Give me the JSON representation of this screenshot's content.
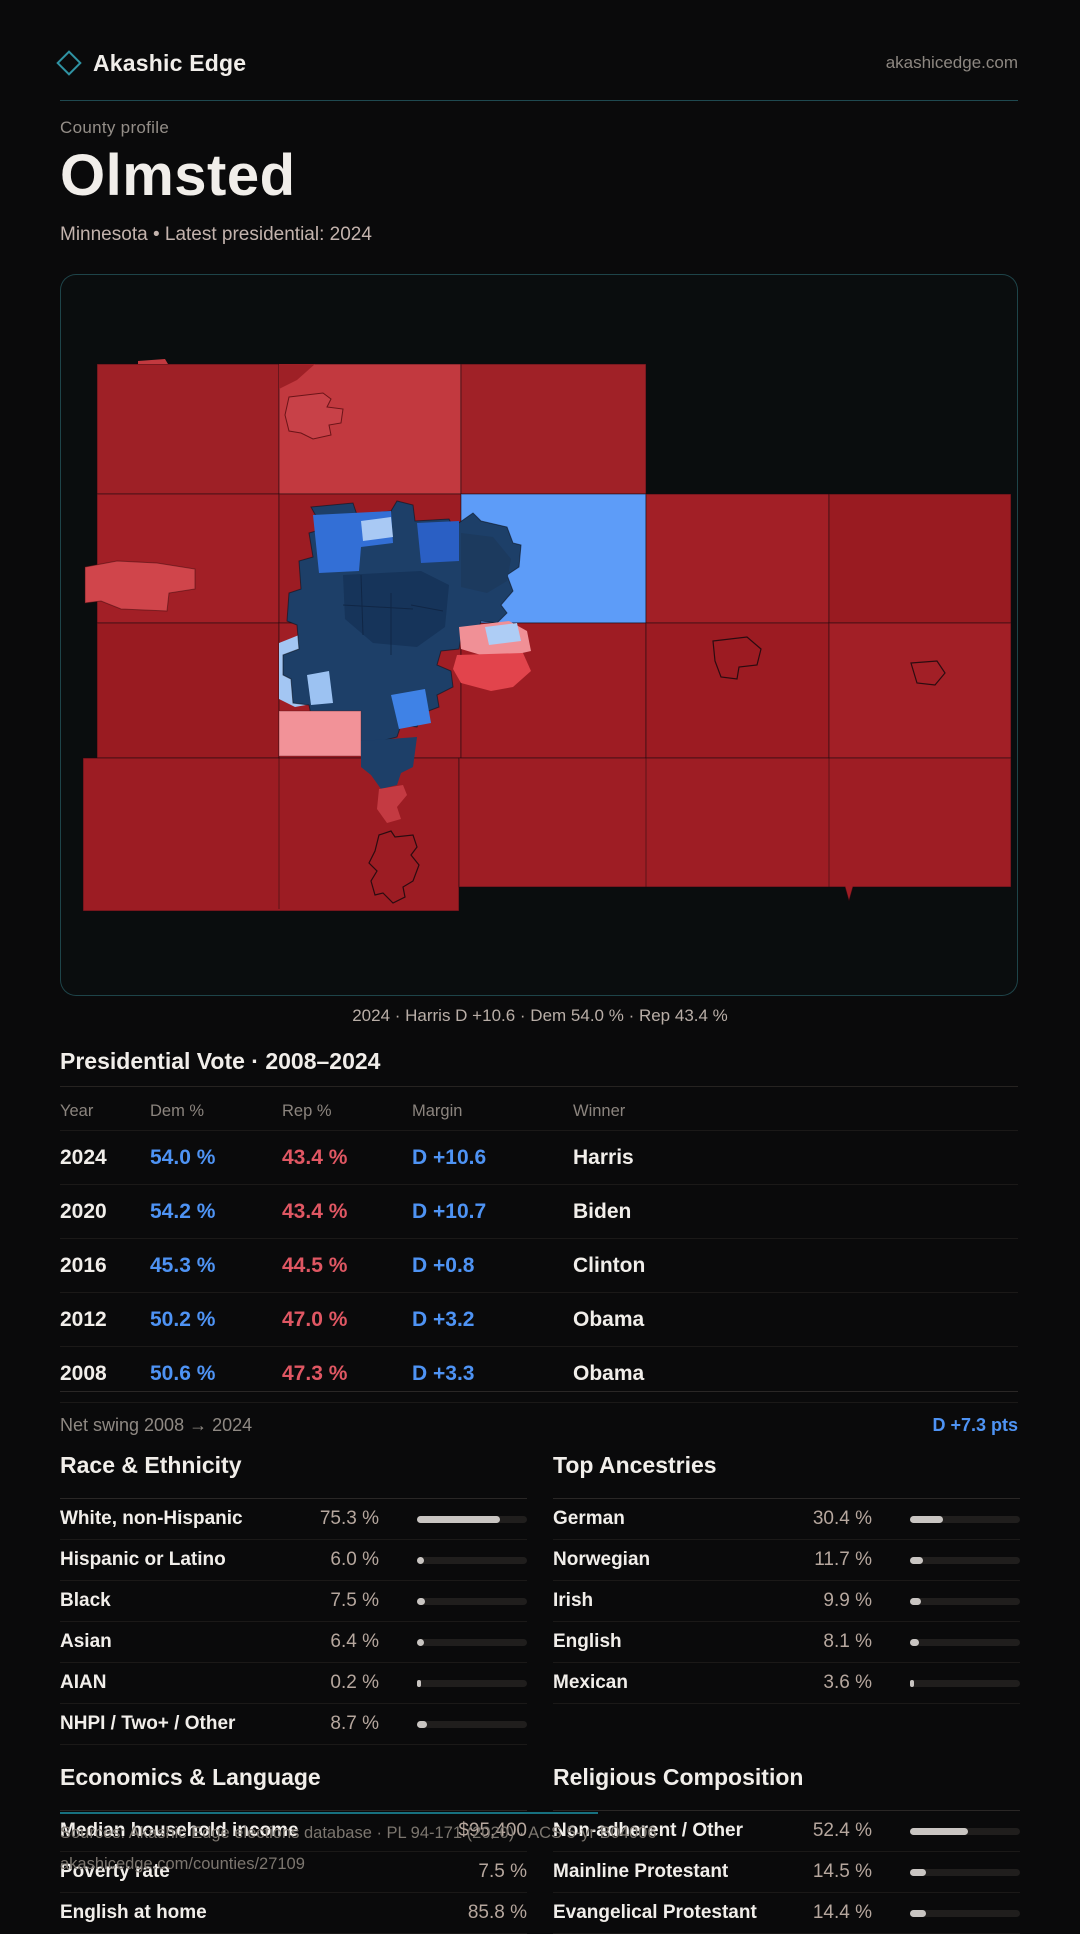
{
  "brand": {
    "name": "Akashic Edge",
    "domain": "akashicedge.com"
  },
  "hero": {
    "eyebrow": "County profile",
    "title": "Olmsted",
    "subtitle": "Minnesota • Latest presidential: 2024"
  },
  "map": {
    "caption": "2024 · Harris D +10.6 · Dem 54.0 % · Rep 43.4 %"
  },
  "vote_table": {
    "title": "Presidential Vote · 2008–2024",
    "columns": [
      "Year",
      "Dem %",
      "Rep %",
      "Margin",
      "Winner"
    ],
    "rows": [
      {
        "year": "2024",
        "dem": "54.0 %",
        "rep": "43.4 %",
        "margin": "D +10.6",
        "winner": "Harris"
      },
      {
        "year": "2020",
        "dem": "54.2 %",
        "rep": "43.4 %",
        "margin": "D +10.7",
        "winner": "Biden"
      },
      {
        "year": "2016",
        "dem": "45.3 %",
        "rep": "44.5 %",
        "margin": "D +0.8",
        "winner": "Clinton"
      },
      {
        "year": "2012",
        "dem": "50.2 %",
        "rep": "47.0 %",
        "margin": "D +3.2",
        "winner": "Obama"
      },
      {
        "year": "2008",
        "dem": "50.6 %",
        "rep": "47.3 %",
        "margin": "D +3.3",
        "winner": "Obama"
      }
    ],
    "net_swing": {
      "label": "Net swing 2008 → 2024",
      "value": "D +7.3 pts"
    }
  },
  "sections": {
    "race": {
      "title": "Race & Ethnicity",
      "rows": [
        {
          "label": "White, non-Hispanic",
          "value": "75.3 %",
          "pct": 75.3
        },
        {
          "label": "Hispanic or Latino",
          "value": "6.0 %",
          "pct": 6.0
        },
        {
          "label": "Black",
          "value": "7.5 %",
          "pct": 7.5
        },
        {
          "label": "Asian",
          "value": "6.4 %",
          "pct": 6.4
        },
        {
          "label": "AIAN",
          "value": "0.2 %",
          "pct": 0.2
        },
        {
          "label": "NHPI / Two+ / Other",
          "value": "8.7 %",
          "pct": 8.7
        }
      ]
    },
    "ancestries": {
      "title": "Top Ancestries",
      "rows": [
        {
          "label": "German",
          "value": "30.4 %",
          "pct": 30.4
        },
        {
          "label": "Norwegian",
          "value": "11.7 %",
          "pct": 11.7
        },
        {
          "label": "Irish",
          "value": "9.9 %",
          "pct": 9.9
        },
        {
          "label": "English",
          "value": "8.1 %",
          "pct": 8.1
        },
        {
          "label": "Mexican",
          "value": "3.6 %",
          "pct": 3.6
        }
      ]
    },
    "economics": {
      "title": "Economics & Language",
      "rows": [
        {
          "label": "Median household income",
          "value": "$95,400",
          "pct": null
        },
        {
          "label": "Poverty rate",
          "value": "7.5 %",
          "pct": null
        },
        {
          "label": "English at home",
          "value": "85.8 %",
          "pct": null
        }
      ]
    },
    "religion": {
      "title": "Religious Composition",
      "rows": [
        {
          "label": "Non-adherent / Other",
          "value": "52.4 %",
          "pct": 52.4
        },
        {
          "label": "Mainline Protestant",
          "value": "14.5 %",
          "pct": 14.5
        },
        {
          "label": "Evangelical Protestant",
          "value": "14.4 %",
          "pct": 14.4
        }
      ]
    }
  },
  "footer": {
    "line1": "Sources: Akashic Edge elections database · PL 94-171 (2020) · ACS 5-yr B04006",
    "line2": "akashicedge.com/counties/27109"
  },
  "colors": {
    "dem": "#4e93f4",
    "rep": "#e05763",
    "text": "#f1eeea",
    "accent_teal": "#2f93a3",
    "bar_fill": "#c9c5c2",
    "map_dem_strong": "#1d3f68",
    "map_rep_strong": "#9c1c23"
  }
}
